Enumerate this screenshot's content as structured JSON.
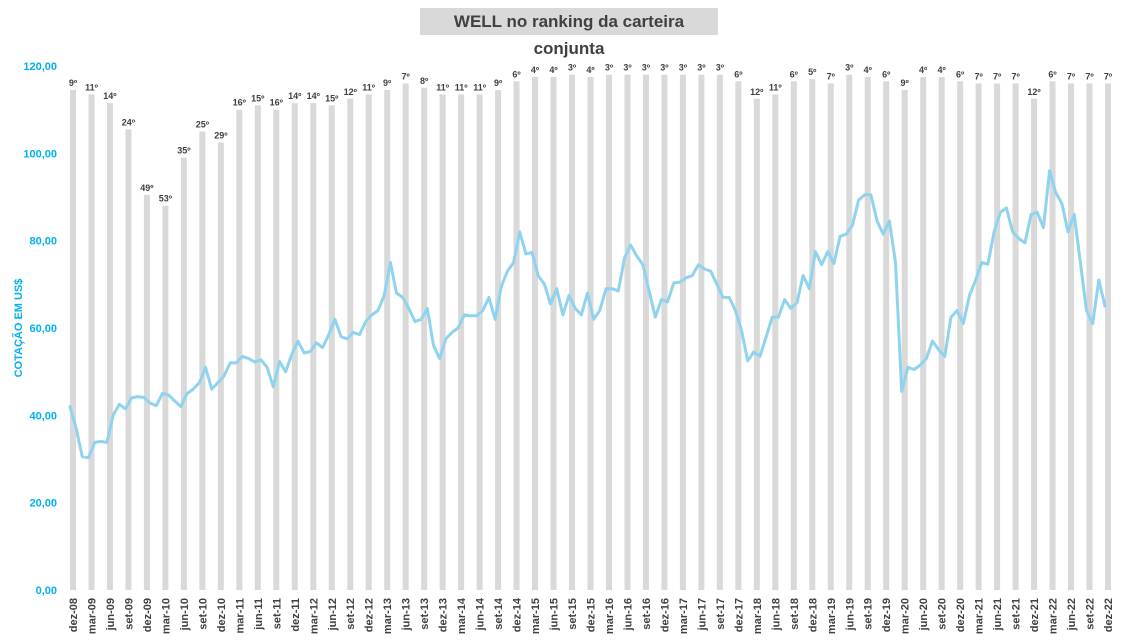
{
  "chart_data": {
    "type": "bar+line",
    "title": "WELL no ranking da carteira conjunta",
    "ylabel": "COTAÇÃO EM US$",
    "ylim": [
      0,
      120
    ],
    "yticks": [
      "0,00",
      "20,00",
      "40,00",
      "60,00",
      "80,00",
      "100,00",
      "120,00"
    ],
    "x_tick_labels": [
      "dez-08",
      "mar-09",
      "jun-09",
      "set-09",
      "dez-09",
      "mar-10",
      "jun-10",
      "set-10",
      "dez-10",
      "mar-11",
      "jun-11",
      "set-11",
      "dez-11",
      "mar-12",
      "jun-12",
      "set-12",
      "dez-12",
      "mar-13",
      "jun-13",
      "set-13",
      "dez-13",
      "mar-14",
      "jun-14",
      "set-14",
      "dez-14",
      "mar-15",
      "jun-15",
      "set-15",
      "dez-15",
      "mar-16",
      "jun-16",
      "set-16",
      "dez-16",
      "mar-17",
      "jun-17",
      "set-17",
      "dez-17",
      "mar-18",
      "jun-18",
      "set-18",
      "dez-18",
      "mar-19",
      "jun-19",
      "set-19",
      "dez-19",
      "mar-20",
      "jun-20",
      "set-20",
      "dez-20",
      "mar-21",
      "jun-21",
      "set-21",
      "dez-21",
      "mar-22",
      "jun-22",
      "set-22",
      "dez-22"
    ],
    "rank_bars": {
      "labels": [
        "9º",
        "11º",
        "14º",
        "24º",
        "49º",
        "53º",
        "35º",
        "25º",
        "29º",
        "16º",
        "15º",
        "16º",
        "14º",
        "14º",
        "15º",
        "12º",
        "11º",
        "9º",
        "7º",
        "8º",
        "11º",
        "11º",
        "11º",
        "9º",
        "6º",
        "4º",
        "4º",
        "3º",
        "4º",
        "3º",
        "3º",
        "3º",
        "3º",
        "3º",
        "3º",
        "3º",
        "6º",
        "12º",
        "11º",
        "6º",
        "5º",
        "7º",
        "3º",
        "4º",
        "6º",
        "9º",
        "4º",
        "4º",
        "6º",
        "7º",
        "7º",
        "7º",
        "12º",
        "6º",
        "7º",
        "7º",
        "7º"
      ],
      "heights": [
        114.5,
        113.5,
        111.5,
        105.5,
        90.5,
        88.0,
        99.0,
        105.0,
        102.5,
        110.0,
        111.0,
        110.0,
        111.5,
        111.5,
        111.0,
        112.5,
        113.5,
        114.5,
        116.0,
        115.0,
        113.5,
        113.5,
        113.5,
        114.5,
        116.5,
        117.5,
        117.5,
        118.0,
        117.5,
        118.0,
        118.0,
        118.0,
        118.0,
        118.0,
        118.0,
        118.0,
        116.5,
        112.5,
        113.5,
        116.5,
        117.0,
        116.0,
        118.0,
        117.5,
        116.5,
        114.5,
        117.5,
        117.5,
        116.5,
        116.0,
        116.0,
        116.0,
        112.5,
        116.5,
        116.0,
        116.0,
        116.0
      ]
    },
    "price_series": [
      42,
      37,
      30.5,
      30.3,
      33.8,
      34,
      33.8,
      40,
      42.5,
      41.5,
      44,
      44.3,
      44.1,
      42.8,
      42.2,
      45,
      44.7,
      43.3,
      42,
      45,
      46,
      47.5,
      51,
      46,
      47.5,
      49,
      52,
      52,
      53.5,
      53,
      52.2,
      52.7,
      51,
      46.5,
      52.3,
      50,
      54,
      57,
      54.3,
      54.6,
      56.6,
      55.5,
      58.5,
      62,
      58,
      57.5,
      59,
      58.5,
      61.5,
      63,
      64,
      67.5,
      75,
      68,
      67,
      64.5,
      61.5,
      62,
      64.5,
      56,
      53,
      57.5,
      59,
      60,
      63,
      62.8,
      62.8,
      64,
      67,
      62,
      69.5,
      73,
      75,
      82,
      77,
      77.3,
      72,
      70,
      65.5,
      69,
      63,
      67.5,
      64.5,
      63,
      68,
      62,
      64,
      69,
      69,
      68.5,
      76,
      79,
      76.5,
      74.5,
      68.5,
      62.5,
      66.5,
      66,
      70.3,
      70.5,
      71.5,
      72,
      74.5,
      73.5,
      73,
      70,
      67,
      67,
      64,
      59.5,
      52.5,
      54.5,
      53.5,
      58,
      62.5,
      62.5,
      66.5,
      64.5,
      65.8,
      72,
      69,
      77.5,
      74.5,
      77.5,
      74.8,
      81,
      81.5,
      83.5,
      89.3,
      90.5,
      90.5,
      84.5,
      81.5,
      84.5,
      75,
      45.5,
      51,
      50.5,
      51.5,
      53,
      57,
      55,
      53.5,
      62.5,
      64,
      61,
      67.5,
      71,
      75,
      74.6,
      82,
      86.5,
      87.5,
      82,
      80.5,
      79.5,
      86,
      86.5,
      83,
      96,
      91,
      88.5,
      82,
      86,
      75,
      64,
      61,
      71,
      65
    ]
  }
}
